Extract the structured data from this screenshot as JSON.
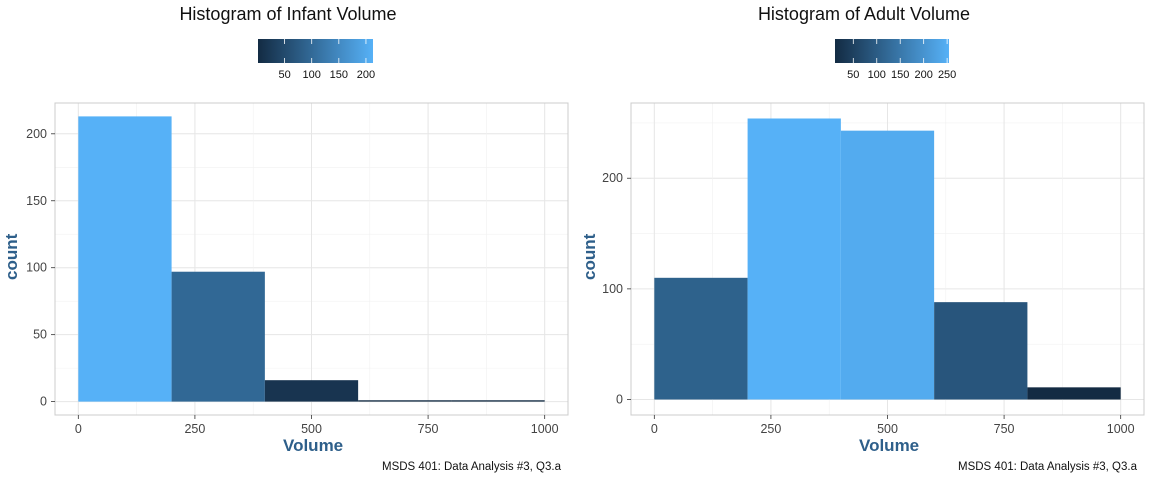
{
  "chart_data": [
    {
      "type": "bar",
      "title": "Histogram of Infant Volume",
      "xlabel": "Volume",
      "ylabel": "count",
      "caption": "MSDS 401: Data Analysis #3, Q3.a",
      "bins": [
        [
          0,
          200
        ],
        [
          200,
          400
        ],
        [
          400,
          600
        ],
        [
          600,
          800
        ],
        [
          800,
          1000
        ]
      ],
      "values": [
        213,
        97,
        16,
        1,
        1
      ],
      "xlim": [
        -50,
        1050
      ],
      "ylim": [
        -10,
        223
      ],
      "xticks": [
        0,
        250,
        500,
        750,
        1000
      ],
      "yticks": [
        0,
        50,
        100,
        150,
        200
      ],
      "legend": {
        "ticks": [
          50,
          100,
          150,
          200
        ],
        "range": [
          1,
          213
        ]
      },
      "colors": {
        "low": "#132b43",
        "high": "#56b1f7"
      },
      "grid": true
    },
    {
      "type": "bar",
      "title": "Histogram of Adult Volume",
      "xlabel": "Volume",
      "ylabel": "count",
      "caption": "MSDS 401: Data Analysis #3, Q3.a",
      "bins": [
        [
          0,
          200
        ],
        [
          200,
          400
        ],
        [
          400,
          600
        ],
        [
          600,
          800
        ],
        [
          800,
          1000
        ]
      ],
      "values": [
        110,
        254,
        243,
        88,
        11
      ],
      "xlim": [
        -50,
        1050
      ],
      "ylim": [
        -14,
        268
      ],
      "xticks": [
        0,
        250,
        500,
        750,
        1000
      ],
      "yticks": [
        0,
        100,
        200
      ],
      "legend": {
        "ticks": [
          50,
          100,
          150,
          200,
          250
        ],
        "range": [
          11,
          254
        ]
      },
      "colors": {
        "low": "#132b43",
        "high": "#56b1f7"
      },
      "grid": true
    }
  ]
}
